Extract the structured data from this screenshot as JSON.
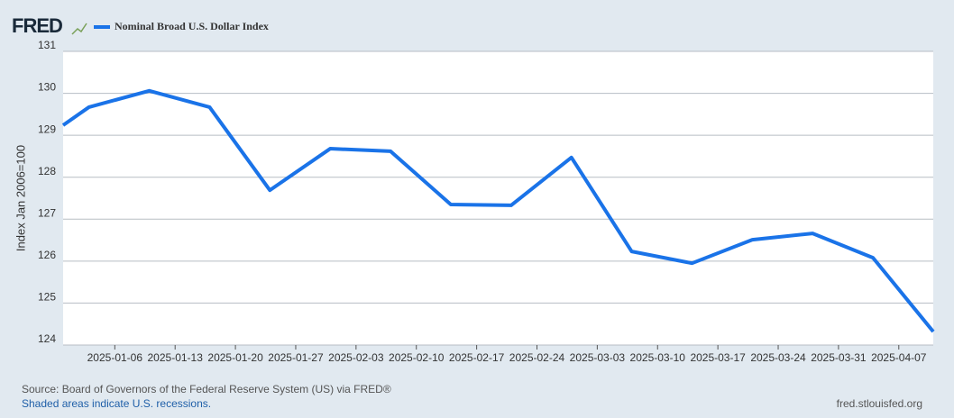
{
  "logo": "FRED",
  "chart_data": {
    "type": "line",
    "ylabel": "Index Jan 2006=100",
    "x": [
      "2024-12-31",
      "2025-01-03",
      "2025-01-10",
      "2025-01-17",
      "2025-01-24",
      "2025-01-31",
      "2025-02-07",
      "2025-02-14",
      "2025-02-21",
      "2025-02-28",
      "2025-03-07",
      "2025-03-14",
      "2025-03-21",
      "2025-03-28",
      "2025-04-04",
      "2025-04-11"
    ],
    "series": [
      {
        "name": "Nominal Broad U.S. Dollar Index",
        "color": "#1a73e8",
        "values": [
          129.24,
          129.67,
          130.06,
          129.67,
          127.69,
          128.68,
          128.62,
          127.35,
          127.33,
          128.47,
          126.23,
          125.95,
          126.51,
          126.66,
          126.08,
          124.32
        ]
      }
    ],
    "xlim": [
      "2024-12-31",
      "2025-04-11"
    ],
    "xticks": [
      "2025-01-06",
      "2025-01-13",
      "2025-01-20",
      "2025-01-27",
      "2025-02-03",
      "2025-02-10",
      "2025-02-17",
      "2025-02-24",
      "2025-03-03",
      "2025-03-10",
      "2025-03-17",
      "2025-03-24",
      "2025-03-31",
      "2025-04-07"
    ],
    "ylim": [
      124,
      131
    ],
    "yticks": [
      124,
      125,
      126,
      127,
      128,
      129,
      130,
      131
    ],
    "grid": true
  },
  "footer": {
    "source": "Source: Board of Governors of the Federal Reserve System (US) via FRED®",
    "note": "Shaded areas indicate U.S. recessions.",
    "site": "fred.stlouisfed.org"
  }
}
